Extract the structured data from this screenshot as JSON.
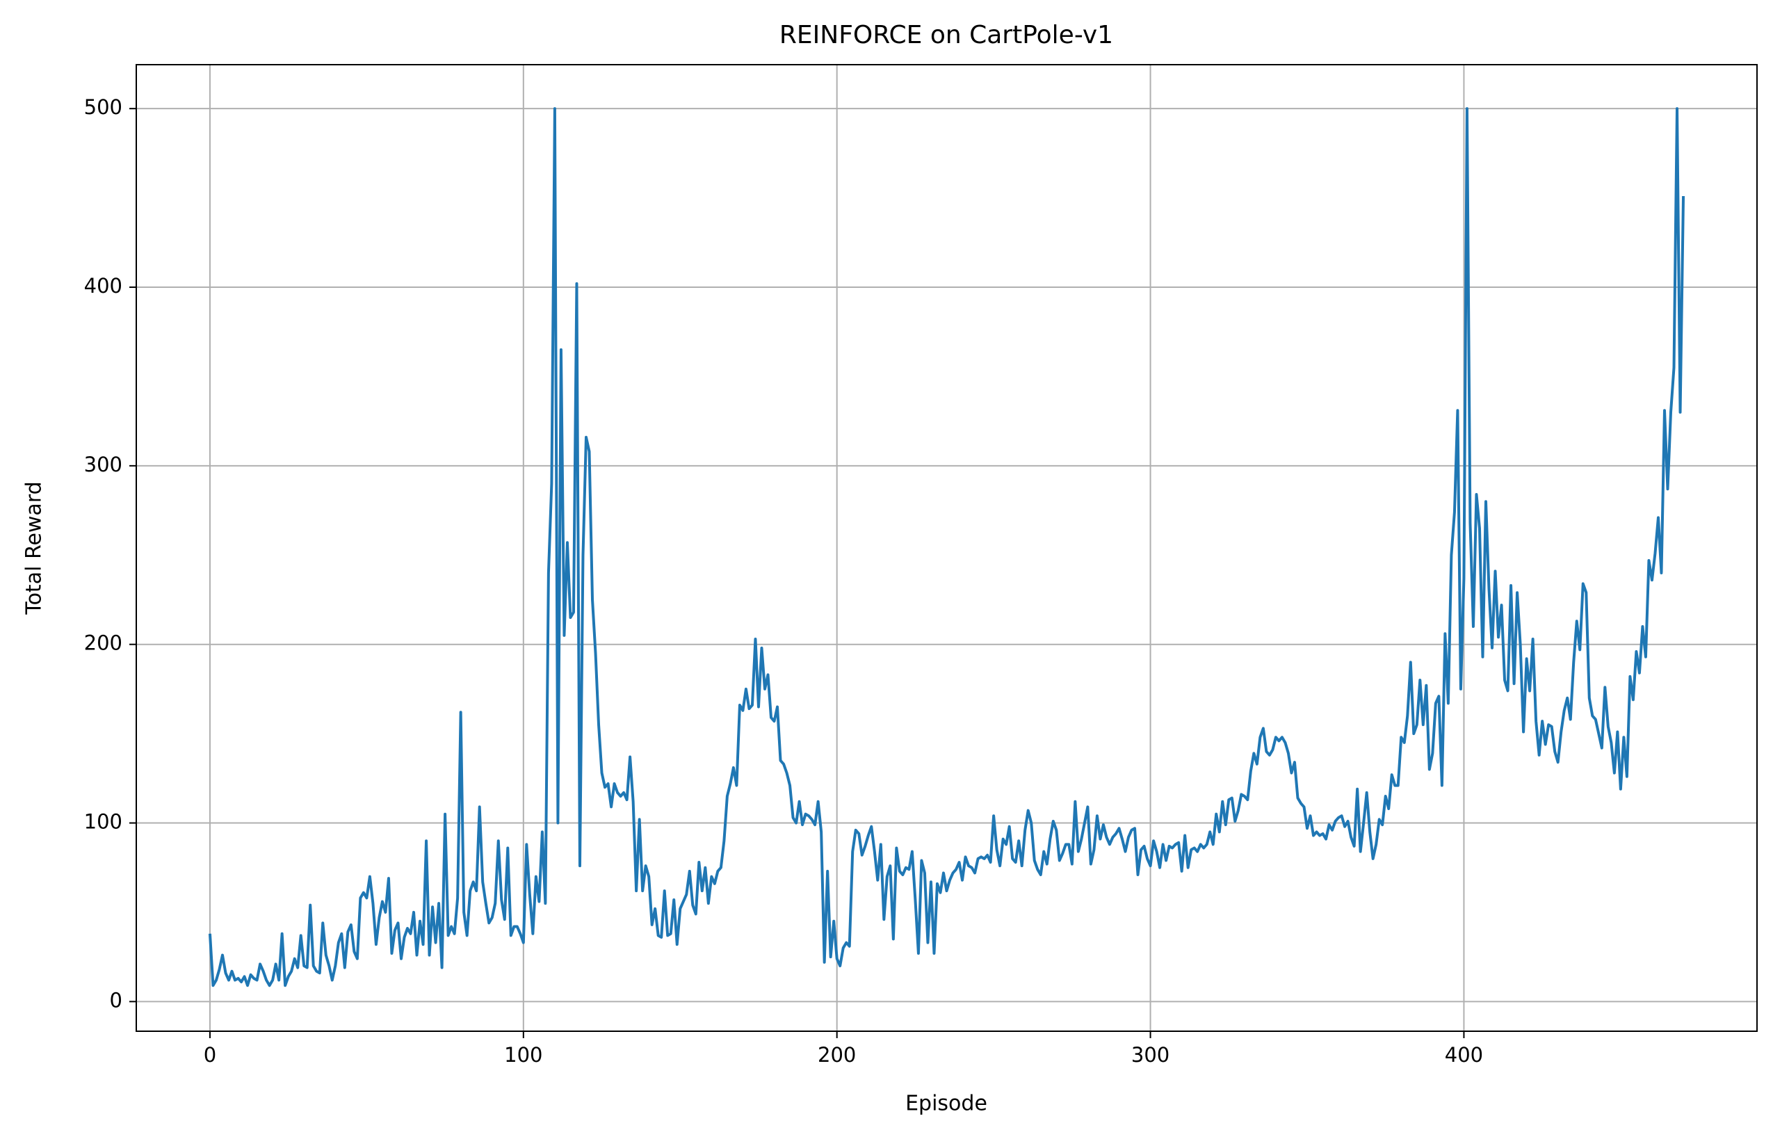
{
  "chart_data": {
    "type": "line",
    "title": "REINFORCE on CartPole-v1",
    "x_label": "Episode",
    "y_label": "Total Reward",
    "color": "#1f77b4",
    "grid": true,
    "xlim": [
      -23.5,
      493.5
    ],
    "ylim": [
      -16.6,
      524.6
    ],
    "xticks": [
      0,
      100,
      200,
      300,
      400
    ],
    "yticks": [
      0,
      100,
      200,
      300,
      400,
      500
    ],
    "x": [
      0,
      1,
      2,
      3,
      4,
      5,
      6,
      7,
      8,
      9,
      10,
      11,
      12,
      13,
      14,
      15,
      16,
      17,
      18,
      19,
      20,
      21,
      22,
      23,
      24,
      25,
      26,
      27,
      28,
      29,
      30,
      31,
      32,
      33,
      34,
      35,
      36,
      37,
      38,
      39,
      40,
      41,
      42,
      43,
      44,
      45,
      46,
      47,
      48,
      49,
      50,
      51,
      52,
      53,
      54,
      55,
      56,
      57,
      58,
      59,
      60,
      61,
      62,
      63,
      64,
      65,
      66,
      67,
      68,
      69,
      70,
      71,
      72,
      73,
      74,
      75,
      76,
      77,
      78,
      79,
      80,
      81,
      82,
      83,
      84,
      85,
      86,
      87,
      88,
      89,
      90,
      91,
      92,
      93,
      94,
      95,
      96,
      97,
      98,
      99,
      100,
      101,
      102,
      103,
      104,
      105,
      106,
      107,
      108,
      109,
      110,
      111,
      112,
      113,
      114,
      115,
      116,
      117,
      118,
      119,
      120,
      121,
      122,
      123,
      124,
      125,
      126,
      127,
      128,
      129,
      130,
      131,
      132,
      133,
      134,
      135,
      136,
      137,
      138,
      139,
      140,
      141,
      142,
      143,
      144,
      145,
      146,
      147,
      148,
      149,
      150,
      151,
      152,
      153,
      154,
      155,
      156,
      157,
      158,
      159,
      160,
      161,
      162,
      163,
      164,
      165,
      166,
      167,
      168,
      169,
      170,
      171,
      172,
      173,
      174,
      175,
      176,
      177,
      178,
      179,
      180,
      181,
      182,
      183,
      184,
      185,
      186,
      187,
      188,
      189,
      190,
      191,
      192,
      193,
      194,
      195,
      196,
      197,
      198,
      199,
      200,
      201,
      202,
      203,
      204,
      205,
      206,
      207,
      208,
      209,
      210,
      211,
      212,
      213,
      214,
      215,
      216,
      217,
      218,
      219,
      220,
      221,
      222,
      223,
      224,
      225,
      226,
      227,
      228,
      229,
      230,
      231,
      232,
      233,
      234,
      235,
      236,
      237,
      238,
      239,
      240,
      241,
      242,
      243,
      244,
      245,
      246,
      247,
      248,
      249,
      250,
      251,
      252,
      253,
      254,
      255,
      256,
      257,
      258,
      259,
      260,
      261,
      262,
      263,
      264,
      265,
      266,
      267,
      268,
      269,
      270,
      271,
      272,
      273,
      274,
      275,
      276,
      277,
      278,
      279,
      280,
      281,
      282,
      283,
      284,
      285,
      286,
      287,
      288,
      289,
      290,
      291,
      292,
      293,
      294,
      295,
      296,
      297,
      298,
      299,
      300,
      301,
      302,
      303,
      304,
      305,
      306,
      307,
      308,
      309,
      310,
      311,
      312,
      313,
      314,
      315,
      316,
      317,
      318,
      319,
      320,
      321,
      322,
      323,
      324,
      325,
      326,
      327,
      328,
      329,
      330,
      331,
      332,
      333,
      334,
      335,
      336,
      337,
      338,
      339,
      340,
      341,
      342,
      343,
      344,
      345,
      346,
      347,
      348,
      349,
      350,
      351,
      352,
      353,
      354,
      355,
      356,
      357,
      358,
      359,
      360,
      361,
      362,
      363,
      364,
      365,
      366,
      367,
      368,
      369,
      370,
      371,
      372,
      373,
      374,
      375,
      376,
      377,
      378,
      379,
      380,
      381,
      382,
      383,
      384,
      385,
      386,
      387,
      388,
      389,
      390,
      391,
      392,
      393,
      394,
      395,
      396,
      397,
      398,
      399,
      400,
      401,
      402,
      403,
      404,
      405,
      406,
      407,
      408,
      409,
      410,
      411,
      412,
      413,
      414,
      415,
      416,
      417,
      418,
      419,
      420,
      421,
      422,
      423,
      424,
      425,
      426,
      427,
      428,
      429,
      430,
      431,
      432,
      433,
      434,
      435,
      436,
      437,
      438,
      439,
      440,
      441,
      442,
      443,
      444,
      445,
      446,
      447,
      448,
      449,
      450,
      451,
      452,
      453,
      454,
      455,
      456,
      457,
      458,
      459,
      460,
      461,
      462,
      463,
      464,
      465,
      466,
      467,
      468,
      469,
      470
    ],
    "values": [
      38,
      9,
      12,
      18,
      26,
      16,
      12,
      17,
      12,
      13,
      11,
      14,
      9,
      15,
      13,
      12,
      21,
      17,
      12,
      9,
      12,
      21,
      12,
      38,
      9,
      14,
      17,
      24,
      19,
      37,
      20,
      19,
      54,
      20,
      17,
      16,
      44,
      26,
      20,
      12,
      20,
      33,
      38,
      19,
      39,
      43,
      28,
      24,
      58,
      61,
      58,
      70,
      55,
      32,
      47,
      56,
      50,
      69,
      27,
      40,
      44,
      24,
      36,
      41,
      38,
      50,
      26,
      45,
      32,
      90,
      26,
      53,
      33,
      55,
      19,
      105,
      37,
      42,
      38,
      58,
      162,
      50,
      37,
      62,
      67,
      62,
      109,
      67,
      55,
      44,
      47,
      55,
      90,
      57,
      46,
      86,
      37,
      42,
      42,
      38,
      33,
      88,
      60,
      38,
      70,
      56,
      95,
      55,
      240,
      290,
      500,
      100,
      365,
      205,
      257,
      215,
      218,
      402,
      76,
      250,
      316,
      308,
      225,
      195,
      155,
      128,
      120,
      122,
      109,
      122,
      117,
      115,
      117,
      113,
      137,
      112,
      62,
      102,
      62,
      76,
      70,
      43,
      52,
      37,
      36,
      62,
      37,
      38,
      57,
      32,
      52,
      56,
      60,
      73,
      54,
      49,
      78,
      62,
      75,
      55,
      70,
      66,
      73,
      75,
      90,
      115,
      122,
      131,
      121,
      166,
      163,
      175,
      164,
      166,
      203,
      165,
      198,
      175,
      183,
      159,
      157,
      165,
      135,
      133,
      128,
      121,
      103,
      100,
      112,
      99,
      105,
      104,
      102,
      99,
      112,
      95,
      22,
      73,
      25,
      45,
      24,
      20,
      30,
      33,
      31,
      84,
      96,
      94,
      82,
      87,
      93,
      98,
      84,
      68,
      88,
      46,
      70,
      76,
      35,
      86,
      73,
      71,
      75,
      74,
      84,
      57,
      27,
      79,
      72,
      33,
      67,
      27,
      66,
      61,
      72,
      62,
      68,
      72,
      74,
      78,
      68,
      81,
      76,
      75,
      72,
      80,
      81,
      80,
      82,
      78,
      104,
      85,
      76,
      91,
      88,
      98,
      80,
      78,
      90,
      76,
      96,
      107,
      100,
      79,
      74,
      71,
      84,
      77,
      91,
      101,
      96,
      79,
      83,
      88,
      88,
      77,
      112,
      84,
      91,
      100,
      109,
      77,
      85,
      104,
      91,
      99,
      92,
      88,
      92,
      94,
      97,
      91,
      84,
      92,
      96,
      97,
      71,
      85,
      87,
      80,
      76,
      90,
      84,
      75,
      88,
      79,
      87,
      86,
      88,
      89,
      73,
      93,
      75,
      85,
      86,
      84,
      88,
      86,
      88,
      95,
      88,
      105,
      95,
      112,
      99,
      113,
      114,
      101,
      107,
      116,
      115,
      113,
      129,
      139,
      133,
      148,
      153,
      140,
      138,
      141,
      148,
      146,
      148,
      145,
      139,
      128,
      134,
      114,
      111,
      109,
      97,
      104,
      93,
      95,
      93,
      94,
      91,
      99,
      96,
      101,
      103,
      104,
      98,
      101,
      92,
      87,
      119,
      84,
      100,
      117,
      95,
      80,
      88,
      102,
      99,
      115,
      108,
      127,
      121,
      121,
      148,
      145,
      160,
      190,
      150,
      155,
      180,
      155,
      177,
      130,
      139,
      167,
      171,
      121,
      206,
      167,
      250,
      274,
      331,
      175,
      237,
      500,
      268,
      210,
      284,
      265,
      193,
      280,
      231,
      198,
      241,
      204,
      222,
      180,
      174,
      233,
      178,
      229,
      200,
      151,
      192,
      174,
      203,
      157,
      138,
      157,
      144,
      155,
      154,
      140,
      134,
      151,
      163,
      170,
      158,
      190,
      213,
      197,
      234,
      229,
      170,
      160,
      158,
      150,
      142,
      176,
      154,
      145,
      128,
      151,
      119,
      148,
      126,
      182,
      169,
      196,
      184,
      210,
      193,
      247,
      236,
      251,
      271,
      240,
      331,
      287,
      330,
      355,
      500,
      330,
      451
    ]
  }
}
